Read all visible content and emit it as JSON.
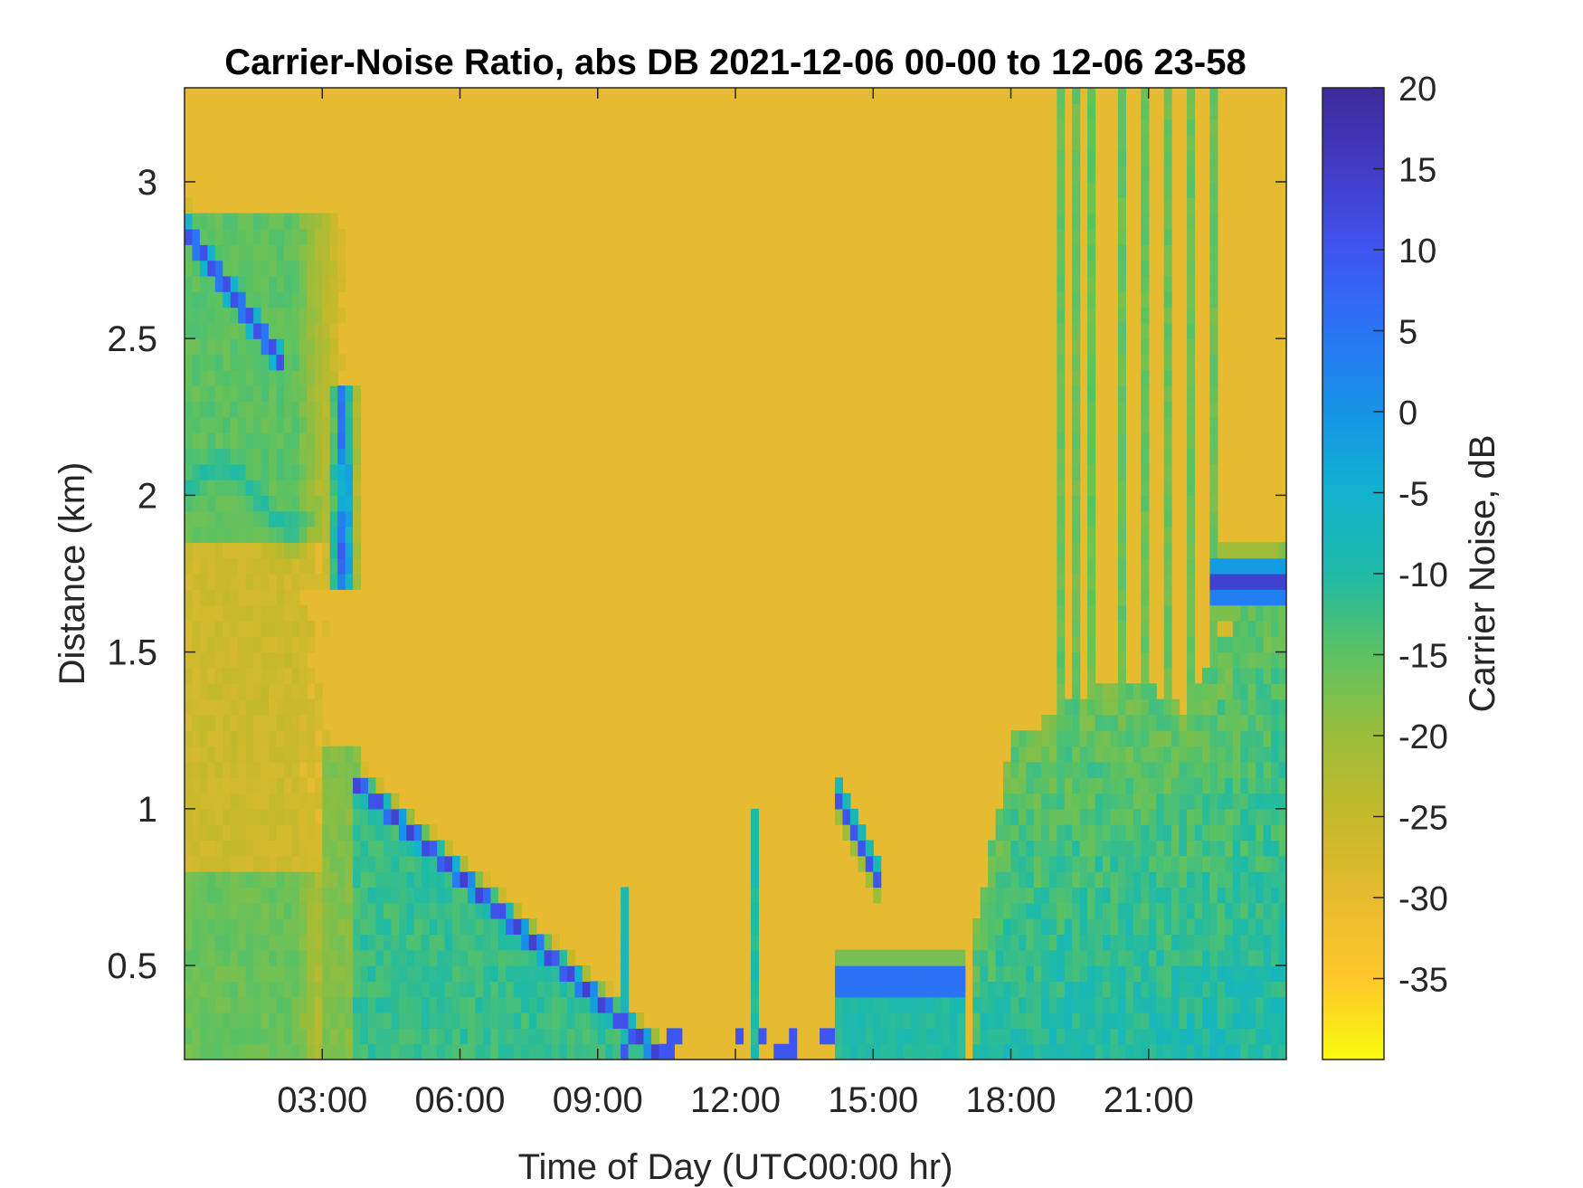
{
  "chart_data": {
    "type": "heatmap",
    "title": "Carrier-Noise Ratio, abs DB 2021-12-06 00-00 to 12-06 23-58",
    "xlabel": "Time of Day (UTC00:00 hr)",
    "ylabel": "Distance (km)",
    "colorbar_label": "Carrier Noise, dB",
    "x_range_hours": [
      0,
      23.97
    ],
    "xlim_hours": [
      0,
      24
    ],
    "x_ticks_hours": [
      3,
      6,
      9,
      12,
      15,
      18,
      21
    ],
    "x_tick_labels": [
      "03:00",
      "06:00",
      "09:00",
      "12:00",
      "15:00",
      "18:00",
      "21:00"
    ],
    "ylim": [
      0.2,
      3.3
    ],
    "y_ticks": [
      0.5,
      1,
      1.5,
      2,
      2.5,
      3
    ],
    "y_tick_labels": [
      "0.5",
      "1",
      "1.5",
      "2",
      "2.5",
      "3"
    ],
    "clim": [
      -40,
      20
    ],
    "colorbar_ticks": [
      20,
      15,
      10,
      5,
      0,
      -5,
      -10,
      -15,
      -20,
      -25,
      -30,
      -35
    ],
    "colorbar_tick_labels": [
      "20",
      "15",
      "10",
      "5",
      "0",
      "-5",
      "-10",
      "-15",
      "-20",
      "-25",
      "-30",
      "-35"
    ],
    "colormap": "parula-reversed",
    "colormap_stops": [
      "#f9fb0e",
      "#fec72a",
      "#e7bb2f",
      "#c5b92a",
      "#9bbd3a",
      "#5cc262",
      "#1fbaa6",
      "#12b2d0",
      "#1593e6",
      "#2a74f5",
      "#3f55f0",
      "#423bc5",
      "#3e2a9b"
    ],
    "background_value_db": -30,
    "features": [
      {
        "name": "morning descending layer",
        "time_hours": [
          3.6,
          10.3
        ],
        "distance_km": [
          1.1,
          0.22
        ],
        "value_db": 12
      },
      {
        "name": "early upper layer",
        "time_hours": [
          0,
          2.0
        ],
        "distance_km": [
          2.85,
          2.45
        ],
        "value_db": 10
      },
      {
        "name": "afternoon layer",
        "time_hours": [
          14.2,
          17.0
        ],
        "distance_km": [
          0.5,
          0.4
        ],
        "value_db": 10
      },
      {
        "name": "late boundary layer",
        "time_hours": [
          17.3,
          24
        ],
        "distance_km": [
          0.2,
          1.9
        ],
        "value_db": -8
      },
      {
        "name": "late elevated echo",
        "time_hours": [
          22.3,
          24
        ],
        "distance_km": [
          1.65,
          1.8
        ],
        "value_db": 12
      }
    ]
  }
}
